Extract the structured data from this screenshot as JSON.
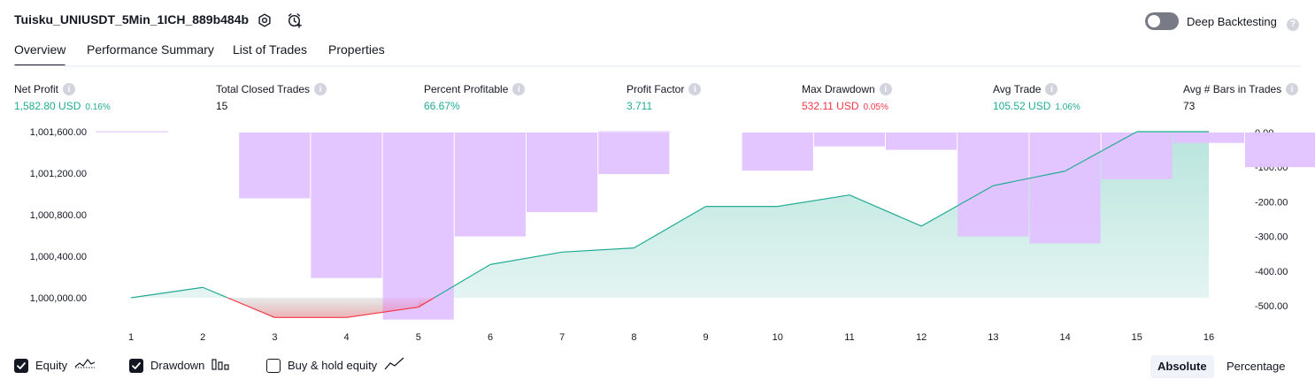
{
  "header": {
    "title": "Tuisku_UNIUSDT_5Min_1ICH_889b484b",
    "deep_backtesting_label": "Deep Backtesting",
    "deep_backtesting_enabled": false
  },
  "tabs": [
    {
      "label": "Overview",
      "active": true
    },
    {
      "label": "Performance Summary",
      "active": false
    },
    {
      "label": "List of Trades",
      "active": false
    },
    {
      "label": "Properties",
      "active": false
    }
  ],
  "metrics": [
    {
      "label": "Net Profit",
      "value": "1,582.80 USD",
      "pct": "0.16%",
      "tone": "green"
    },
    {
      "label": "Total Closed Trades",
      "value": "15",
      "pct": "",
      "tone": "dark"
    },
    {
      "label": "Percent Profitable",
      "value": "66.67%",
      "pct": "",
      "tone": "green"
    },
    {
      "label": "Profit Factor",
      "value": "3.711",
      "pct": "",
      "tone": "green"
    },
    {
      "label": "Max Drawdown",
      "value": "532.11 USD",
      "pct": "0.05%",
      "tone": "red"
    },
    {
      "label": "Avg Trade",
      "value": "105.52 USD",
      "pct": "1.06%",
      "tone": "green"
    },
    {
      "label": "Avg # Bars in Trades",
      "value": "73",
      "pct": "",
      "tone": "dark"
    }
  ],
  "chart_data": {
    "type": "line",
    "x": [
      1,
      2,
      3,
      4,
      5,
      6,
      7,
      8,
      9,
      10,
      11,
      12,
      13,
      14,
      15,
      16
    ],
    "left_axis": {
      "ticks": [
        1000000,
        1000400,
        1000800,
        1001200,
        1001600
      ],
      "tick_labels": [
        "1,000,000.00",
        "1,000,400.00",
        "1,000,800.00",
        "1,001,200.00",
        "1,001,600.00"
      ]
    },
    "right_axis": {
      "ticks": [
        0,
        -100,
        -200,
        -300,
        -400,
        -500
      ],
      "tick_labels": [
        "0.00",
        "-100.00",
        "-200.00",
        "-300.00",
        "-400.00",
        "-500.00"
      ]
    },
    "series": [
      {
        "name": "Equity",
        "axis": "left",
        "values": [
          1000000,
          1000100,
          999810,
          999810,
          999910,
          1000320,
          1000440,
          1000480,
          1000880,
          1000880,
          1000990,
          1000690,
          1001080,
          1001220,
          1001600,
          1001600
        ]
      },
      {
        "name": "Drawdown",
        "axis": "right",
        "values": [
          0,
          -190,
          -420,
          -540,
          -300,
          -230,
          -120,
          0,
          -110,
          -40,
          -50,
          -300,
          -320,
          -135,
          -30,
          -100
        ]
      }
    ],
    "colors": {
      "equity_up": "#22ab94",
      "equity_down": "#f23645",
      "drawdown": "#e1c2ff"
    }
  },
  "legend": [
    {
      "label": "Equity",
      "checked": true,
      "icon": "equity-icon"
    },
    {
      "label": "Drawdown",
      "checked": true,
      "icon": "bars-icon"
    },
    {
      "label": "Buy & hold equity",
      "checked": false,
      "icon": "line-chart-icon"
    }
  ],
  "mode": {
    "absolute_label": "Absolute",
    "percentage_label": "Percentage",
    "selected": "Absolute"
  }
}
